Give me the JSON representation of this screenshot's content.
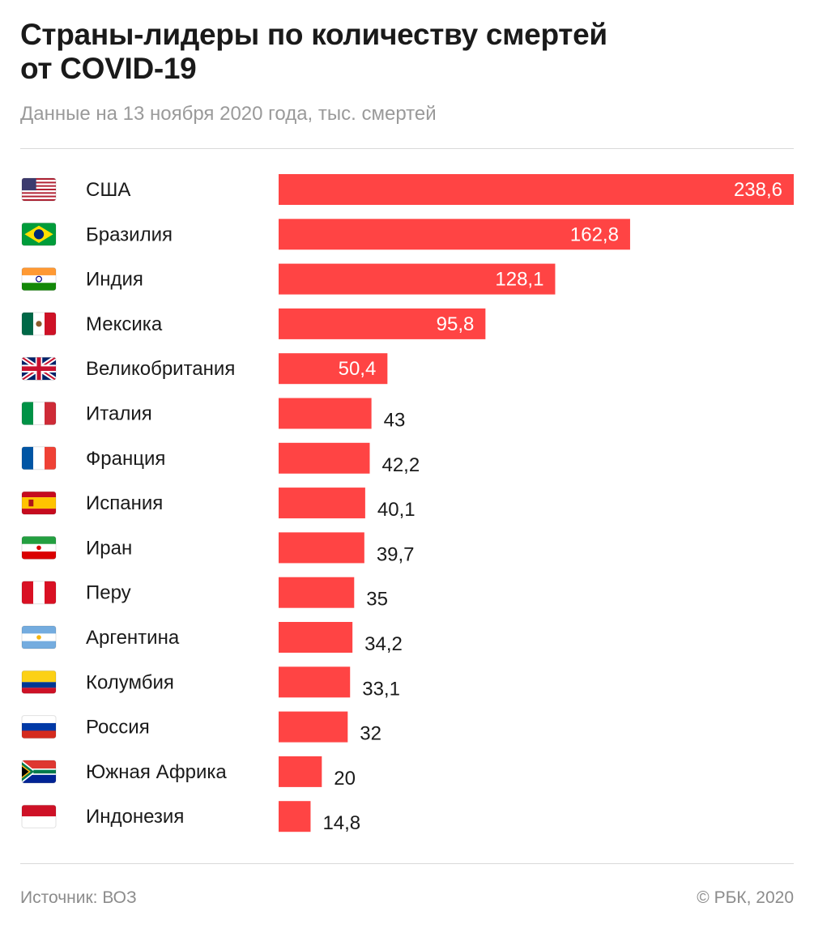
{
  "header": {
    "title_line1": "Страны-лидеры по количеству смертей",
    "title_line2": "от COVID-19",
    "subtitle": "Данные на 13 ноября 2020 года, тыс. смертей"
  },
  "footer": {
    "source": "Источник: ВОЗ",
    "copyright": "© РБК, 2020"
  },
  "colors": {
    "bar": "#ff4444",
    "value_inside": "#ffffff",
    "value_outside": "#1a1a1a"
  },
  "chart_data": {
    "type": "bar",
    "orientation": "horizontal",
    "title": "Страны-лидеры по количеству смертей от COVID-19",
    "subtitle": "Данные на 13 ноября 2020 года, тыс. смертей",
    "grid": false,
    "legend": "none",
    "xlim": [
      0,
      238.6
    ],
    "rows": [
      {
        "country": "США",
        "value": 238.6,
        "label": "238,6",
        "flag": "us-flag-icon"
      },
      {
        "country": "Бразилия",
        "value": 162.8,
        "label": "162,8",
        "flag": "brazil-flag-icon"
      },
      {
        "country": "Индия",
        "value": 128.1,
        "label": "128,1",
        "flag": "india-flag-icon"
      },
      {
        "country": "Мексика",
        "value": 95.8,
        "label": "95,8",
        "flag": "mexico-flag-icon"
      },
      {
        "country": "Великобритания",
        "value": 50.4,
        "label": "50,4",
        "flag": "uk-flag-icon"
      },
      {
        "country": "Италия",
        "value": 43,
        "label": "43",
        "flag": "italy-flag-icon"
      },
      {
        "country": "Франция",
        "value": 42.2,
        "label": "42,2",
        "flag": "france-flag-icon"
      },
      {
        "country": "Испания",
        "value": 40.1,
        "label": "40,1",
        "flag": "spain-flag-icon"
      },
      {
        "country": "Иран",
        "value": 39.7,
        "label": "39,7",
        "flag": "iran-flag-icon"
      },
      {
        "country": "Перу",
        "value": 35,
        "label": "35",
        "flag": "peru-flag-icon"
      },
      {
        "country": "Аргентина",
        "value": 34.2,
        "label": "34,2",
        "flag": "argentina-flag-icon"
      },
      {
        "country": "Колумбия",
        "value": 33.1,
        "label": "33,1",
        "flag": "colombia-flag-icon"
      },
      {
        "country": "Россия",
        "value": 32,
        "label": "32",
        "flag": "russia-flag-icon"
      },
      {
        "country": "Южная Африка",
        "value": 20,
        "label": "20",
        "flag": "south-africa-flag-icon"
      },
      {
        "country": "Индонезия",
        "value": 14.8,
        "label": "14,8",
        "flag": "indonesia-flag-icon"
      }
    ]
  }
}
